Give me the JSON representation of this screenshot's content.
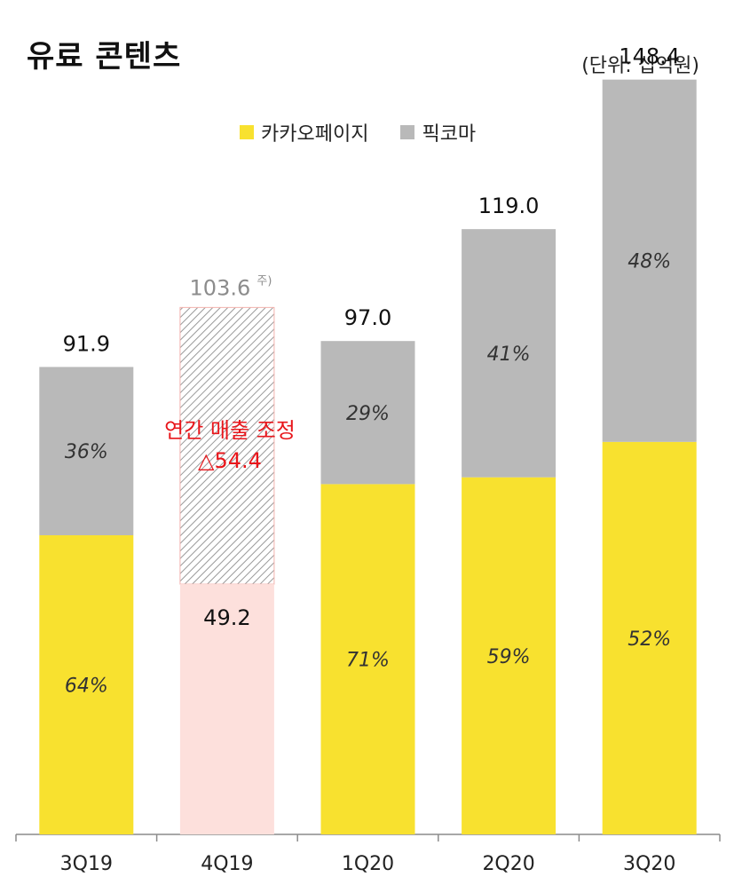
{
  "header": {
    "title": "유료 콘텐츠",
    "unit": "(단위: 십억원)"
  },
  "colors": {
    "kakaopage": "#f8e12f",
    "piccoma": "#b9b9b9",
    "adjusted": "#fde0dc",
    "hatch_border": "#f3b2ad",
    "note": "#e8161b"
  },
  "annotation": {
    "line1": "연간 매출 조정",
    "line2": "△54.4"
  },
  "chart_data": {
    "type": "bar",
    "stacked": true,
    "categories": [
      "3Q19",
      "4Q19",
      "1Q20",
      "2Q20",
      "3Q20"
    ],
    "totals": [
      91.9,
      49.2,
      97.0,
      119.0,
      148.4
    ],
    "total_labels": [
      "91.9",
      "49.2",
      "97.0",
      "119.0",
      "148.4"
    ],
    "pre_adjustment_total": {
      "category": "4Q19",
      "value": 103.6,
      "label": "103.6",
      "footnote": "주)"
    },
    "series": [
      {
        "name": "카카오페이지",
        "share_labels": [
          "64%",
          "",
          "71%",
          "59%",
          "52%"
        ],
        "shares": [
          0.64,
          null,
          0.71,
          0.59,
          0.52
        ]
      },
      {
        "name": "픽코마",
        "share_labels": [
          "36%",
          "",
          "29%",
          "41%",
          "48%"
        ],
        "shares": [
          0.36,
          null,
          0.29,
          0.41,
          0.48
        ]
      }
    ],
    "ylim": [
      0,
      160
    ],
    "xlabel": "",
    "ylabel": "",
    "legend_position": "top"
  }
}
